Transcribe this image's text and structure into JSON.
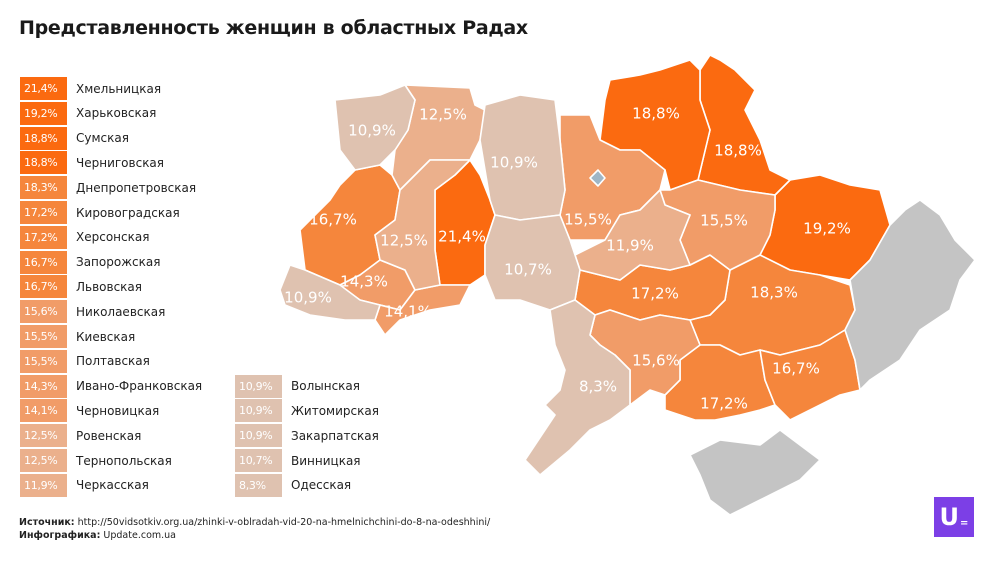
{
  "title": "Представленность женщин в областных Радах",
  "colors": {
    "tier1": "#fb6a10",
    "tier2": "#f5863c",
    "tier3": "#f19c68",
    "tier4": "#ebb08c",
    "tier5": "#dfc2b0",
    "no_data": "#c4c4c4",
    "logo": "#7c3fe6"
  },
  "legend": [
    {
      "value": "21,4%",
      "name": "Хмельницкая",
      "tier": "tier1"
    },
    {
      "value": "19,2%",
      "name": "Харьковская",
      "tier": "tier1"
    },
    {
      "value": "18,8%",
      "name": "Сумская",
      "tier": "tier1"
    },
    {
      "value": "18,8%",
      "name": "Черниговская",
      "tier": "tier1"
    },
    {
      "value": "18,3%",
      "name": "Днепропетровская",
      "tier": "tier2"
    },
    {
      "value": "17,2%",
      "name": "Кировоградская",
      "tier": "tier2"
    },
    {
      "value": "17,2%",
      "name": "Херсонская",
      "tier": "tier2"
    },
    {
      "value": "16,7%",
      "name": "Запорожская",
      "tier": "tier2"
    },
    {
      "value": "16,7%",
      "name": "Львовская",
      "tier": "tier2"
    },
    {
      "value": "15,6%",
      "name": "Николаевская",
      "tier": "tier3"
    },
    {
      "value": "15,5%",
      "name": "Киевская",
      "tier": "tier3"
    },
    {
      "value": "15,5%",
      "name": "Полтавская",
      "tier": "tier3"
    },
    {
      "value": "14,3%",
      "name": "Ивано-Франковская",
      "tier": "tier3"
    },
    {
      "value": "14,1%",
      "name": "Черновицкая",
      "tier": "tier3"
    },
    {
      "value": "12,5%",
      "name": "Ровенская",
      "tier": "tier4"
    },
    {
      "value": "12,5%",
      "name": "Тернопольская",
      "tier": "tier4"
    },
    {
      "value": "11,9%",
      "name": "Черкасская",
      "tier": "tier4"
    },
    {
      "value": "10,9%",
      "name": "Волынская",
      "tier": "tier5"
    },
    {
      "value": "10,9%",
      "name": "Житомирская",
      "tier": "tier5"
    },
    {
      "value": "10,9%",
      "name": "Закарпатская",
      "tier": "tier5"
    },
    {
      "value": "10,7%",
      "name": "Винницкая",
      "tier": "tier5"
    },
    {
      "value": "8,3%",
      "name": "Одесская",
      "tier": "tier5"
    }
  ],
  "footer": {
    "source_label": "Источник:",
    "source_url": "http://50vidsotkiv.org.ua/zhinki-v-oblradah-vid-20-na-hmelnichchini-do-8-na-odeshhini/",
    "infographic_label": "Инфографика:",
    "infographic_value": "Update.com.ua"
  },
  "logo": {
    "text": "U"
  }
}
